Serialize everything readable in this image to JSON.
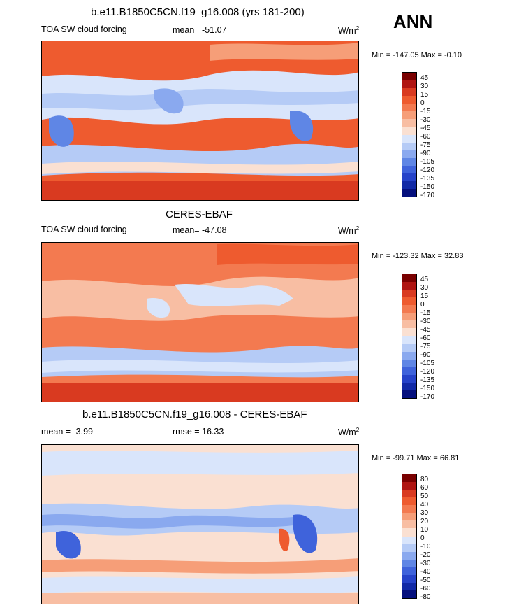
{
  "figure": {
    "season": "ANN",
    "units_label": "W/m",
    "units_exp": "2"
  },
  "palettes": {
    "fields": [
      "#7a0000",
      "#b01512",
      "#d93a20",
      "#ee5b2f",
      "#f37a50",
      "#f69e78",
      "#f8bea3",
      "#fae0d2",
      "#d9e5fb",
      "#b5cbf6",
      "#8aa9ef",
      "#5f86e5",
      "#3f63db",
      "#2643c9",
      "#122aa6",
      "#05107d"
    ],
    "diff": [
      "#7a0000",
      "#b01512",
      "#d93a20",
      "#ee5b2f",
      "#f37a50",
      "#f69e78",
      "#f8bea3",
      "#fae0d2",
      "#d9e5fb",
      "#b5cbf6",
      "#8aa9ef",
      "#5f86e5",
      "#3f63db",
      "#2643c9",
      "#122aa6",
      "#05107d"
    ]
  },
  "chart_data": [
    {
      "type": "heatmap",
      "title": "b.e11.B1850C5CN.f19_g16.008 (yrs 181-200)",
      "left_label": "TOA SW cloud forcing",
      "stat_label": "mean= -51.07",
      "minmax_label": "Min = -147.05 Max =  -0.10",
      "mean": -51.07,
      "min": -147.05,
      "max": -0.1,
      "colorbar_levels": [
        "45",
        "30",
        "15",
        "0",
        "-15",
        "-30",
        "-45",
        "-60",
        "-75",
        "-90",
        "-105",
        "-120",
        "-135",
        "-150",
        "-170"
      ]
    },
    {
      "type": "heatmap",
      "title": "CERES-EBAF",
      "left_label": "TOA SW cloud forcing",
      "stat_label": "mean= -47.08",
      "minmax_label": "Min = -123.32 Max =  32.83",
      "mean": -47.08,
      "min": -123.32,
      "max": 32.83,
      "colorbar_levels": [
        "45",
        "30",
        "15",
        "0",
        "-15",
        "-30",
        "-45",
        "-60",
        "-75",
        "-90",
        "-105",
        "-120",
        "-135",
        "-150",
        "-170"
      ]
    },
    {
      "type": "heatmap",
      "title": "b.e11.B1850C5CN.f19_g16.008 - CERES-EBAF",
      "left_label": "mean =  -3.99",
      "stat_label": "rmse =  16.33",
      "minmax_label": "Min = -99.71 Max =  66.81",
      "mean": -3.99,
      "rmse": 16.33,
      "min": -99.71,
      "max": 66.81,
      "colorbar_levels": [
        "80",
        "60",
        "50",
        "40",
        "30",
        "20",
        "10",
        "0",
        "-10",
        "-20",
        "-30",
        "-40",
        "-50",
        "-60",
        "-80"
      ]
    }
  ]
}
